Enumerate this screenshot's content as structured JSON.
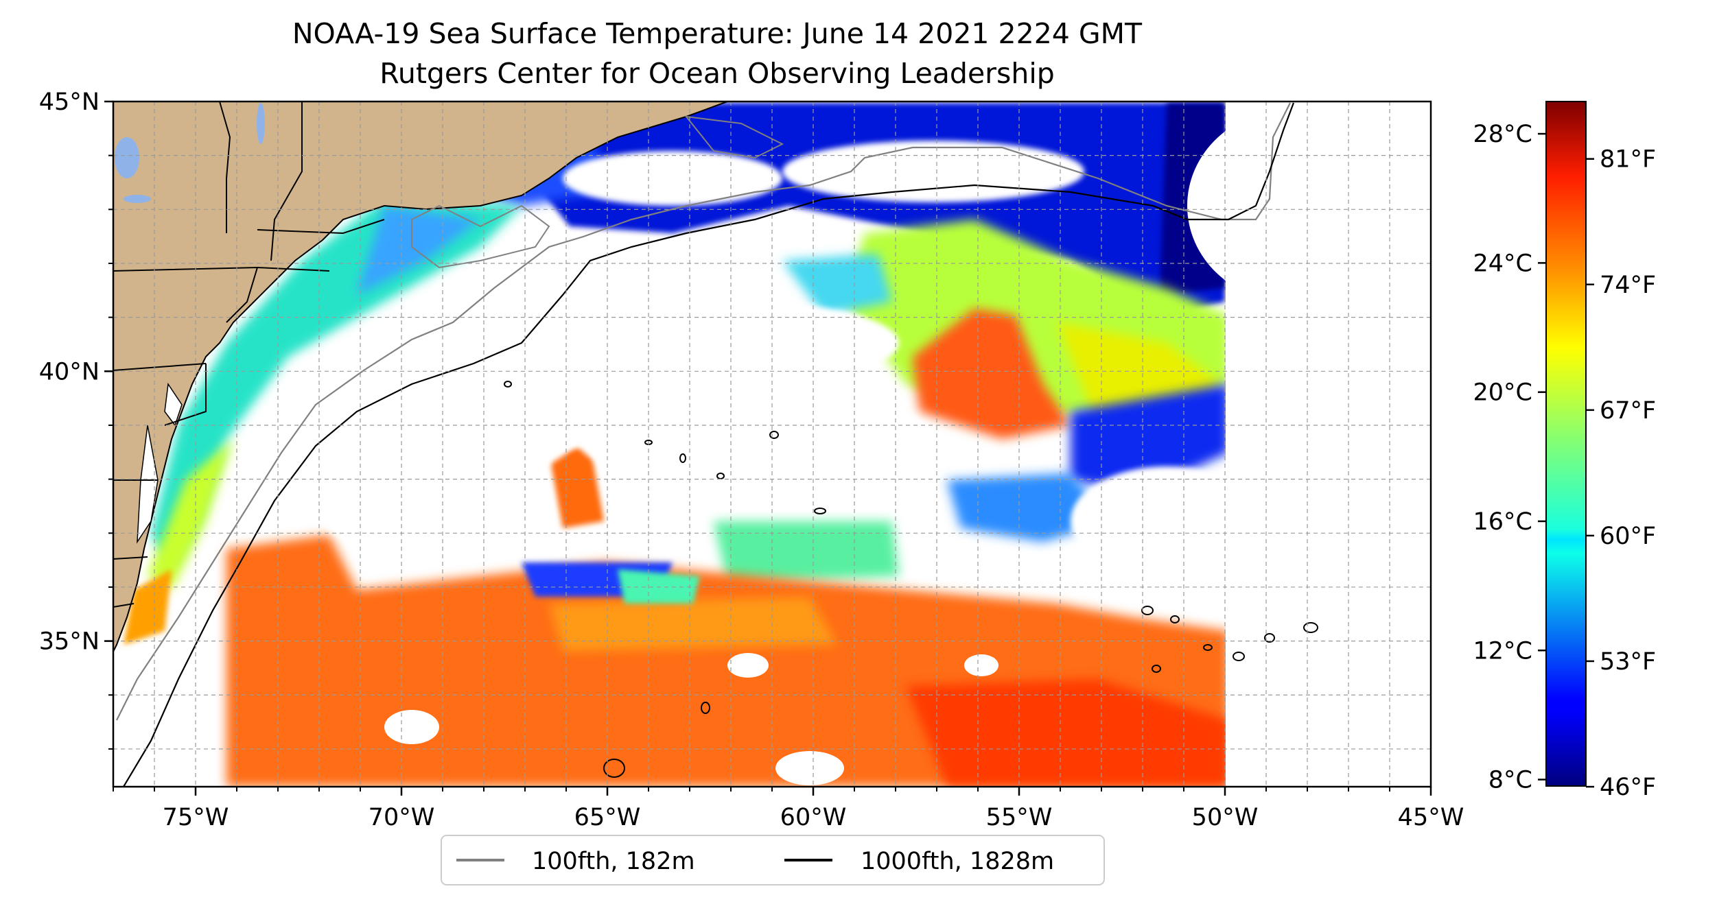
{
  "title": {
    "line1": "NOAA-19 Sea Surface Temperature: June 14 2021 2224 GMT",
    "line2": "Rutgers Center for Ocean Observing Leadership"
  },
  "map": {
    "lon_range": [
      -77,
      -45
    ],
    "lat_range": [
      32.3,
      45
    ],
    "lon_ticks": [
      {
        "value": -75,
        "label": "75°W"
      },
      {
        "value": -70,
        "label": "70°W"
      },
      {
        "value": -65,
        "label": "65°W"
      },
      {
        "value": -60,
        "label": "60°W"
      },
      {
        "value": -55,
        "label": "55°W"
      },
      {
        "value": -50,
        "label": "50°W"
      },
      {
        "value": -45,
        "label": "45°W"
      }
    ],
    "lat_ticks": [
      {
        "value": 45,
        "label": "45°N"
      },
      {
        "value": 40,
        "label": "40°N"
      },
      {
        "value": 35,
        "label": "35°N"
      }
    ],
    "grid": true,
    "land_color": "#d2b48c",
    "no_data_color": "#ffffff"
  },
  "colorbar": {
    "colormap": "jet",
    "celsius_range": [
      7.8,
      29.0
    ],
    "celsius_ticks": [
      {
        "value": 28,
        "label": "28°C"
      },
      {
        "value": 24,
        "label": "24°C"
      },
      {
        "value": 20,
        "label": "20°C"
      },
      {
        "value": 16,
        "label": "16°C"
      },
      {
        "value": 12,
        "label": "12°C"
      },
      {
        "value": 8,
        "label": "8°C"
      }
    ],
    "fahrenheit_ticks": [
      {
        "value": 81,
        "label": "81°F"
      },
      {
        "value": 74,
        "label": "74°F"
      },
      {
        "value": 67,
        "label": "67°F"
      },
      {
        "value": 60,
        "label": "60°F"
      },
      {
        "value": 53,
        "label": "53°F"
      },
      {
        "value": 46,
        "label": "46°F"
      }
    ]
  },
  "legend": {
    "placement": "bottom-center",
    "entries": [
      {
        "label": "100fth, 182m",
        "color": "#808080"
      },
      {
        "label": "1000fth, 1828m",
        "color": "#000000"
      }
    ]
  }
}
